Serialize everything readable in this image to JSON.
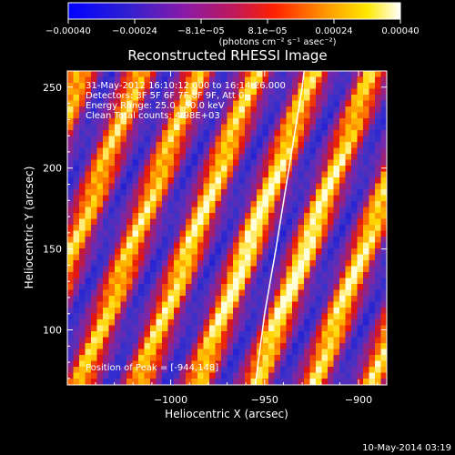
{
  "chart_data": {
    "type": "heatmap",
    "title": "Reconstructed RHESSI Image",
    "xlabel": "Heliocentric X (arcsec)",
    "ylabel": "Heliocentric Y (arcsec)",
    "xlim": [
      -1055,
      -885
    ],
    "ylim": [
      66,
      260
    ],
    "x_ticks": [
      {
        "value": -1000,
        "label": "−1000"
      },
      {
        "value": -950,
        "label": "−950"
      },
      {
        "value": -900,
        "label": "−900"
      }
    ],
    "y_ticks": [
      {
        "value": 100,
        "label": "100"
      },
      {
        "value": 150,
        "label": "150"
      },
      {
        "value": 200,
        "label": "200"
      },
      {
        "value": 250,
        "label": "250"
      }
    ],
    "annotations": [
      "31-May-2012 16:10:12.000 to 16:14:26.000",
      "Detectors: 3F 5F 6F 7F 8F 9F, Att 0",
      "Energy Range: 25.0 - 50.0 keV",
      "Clean    Total counts: 4.98E+03"
    ],
    "peak_label": "Position of Peak = [-944,148]",
    "peak": {
      "x": -944,
      "y": 148
    },
    "limb": [
      [
        -955,
        66
      ],
      [
        -950,
        110
      ],
      [
        -944,
        150
      ],
      [
        -937,
        200
      ],
      [
        -930,
        250
      ],
      [
        -929,
        260
      ]
    ],
    "colorbar": {
      "colormap": "rainbow-like (blue-purple-red-orange-yellow-white)",
      "range": [
        -0.0004,
        0.0004
      ],
      "tick_labels": [
        "−0.00040",
        "−0.00024",
        "−8.1e−05",
        "8.1e−05",
        "0.00024",
        "0.00040"
      ],
      "units_label": "(photons cm⁻² s⁻¹ asec⁻²)"
    },
    "stripes": {
      "description": "diagonal alternating positive/negative fringe pattern",
      "direction_dx_per_dy": 0.42
    }
  },
  "footer_date": "10-May-2014 03:19"
}
